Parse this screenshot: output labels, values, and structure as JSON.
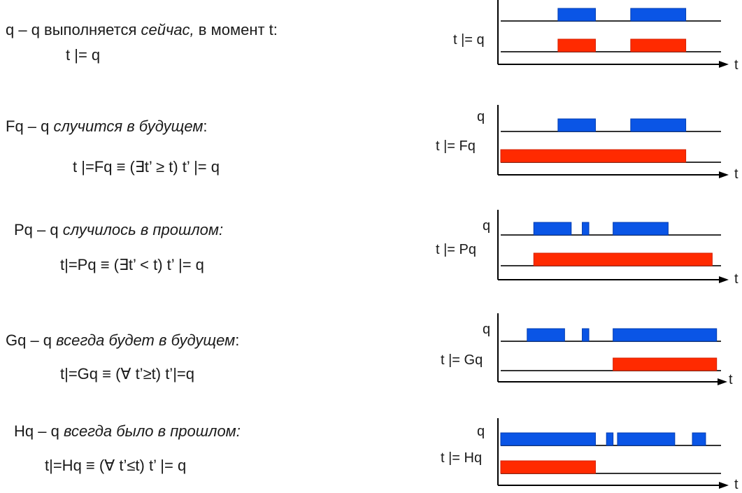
{
  "colors": {
    "q_signal": "#0a55e6",
    "result_signal": "#ff2a00",
    "axis": "#000000",
    "baseline": "#333333"
  },
  "rows": [
    {
      "id": "now",
      "name_lead": "q – q выполняется ",
      "name_italic": "сейчас,",
      "name_tail": " в момент t:",
      "formula": "t |= q",
      "top_label": "",
      "bottom_label": "t |= q",
      "axis_label": "t",
      "q_pulses": [
        [
          0.26,
          0.43
        ],
        [
          0.59,
          0.84
        ]
      ],
      "result_pulses": [
        [
          0.26,
          0.43
        ],
        [
          0.59,
          0.84
        ]
      ]
    },
    {
      "id": "future",
      "name_lead": "Fq – q ",
      "name_italic": "случится в будущем",
      "name_tail": ":",
      "formula": "t |=Fq ≡ (∃t’ ≥ t)  t’ |= q",
      "top_label": "q",
      "bottom_label": "t |= Fq",
      "axis_label": "t",
      "q_pulses": [
        [
          0.26,
          0.43
        ],
        [
          0.59,
          0.84
        ]
      ],
      "result_pulses": [
        [
          0.0,
          0.84
        ]
      ]
    },
    {
      "id": "past",
      "name_lead": "Pq – q ",
      "name_italic": "случилось в прошлом:",
      "name_tail": "",
      "formula": "t|=Pq ≡ (∃t’ < t)  t’ |= q",
      "top_label": "q",
      "bottom_label": "t |= Pq",
      "axis_label": "t",
      "q_pulses": [
        [
          0.15,
          0.32
        ],
        [
          0.37,
          0.4
        ],
        [
          0.51,
          0.76
        ]
      ],
      "result_pulses": [
        [
          0.15,
          0.96
        ]
      ]
    },
    {
      "id": "always_future",
      "name_lead": "Gq – q ",
      "name_italic": "всегда будет в будущем",
      "name_tail": ":",
      "formula": "t|=Gq ≡ (∀ t’≥t) t’|=q",
      "top_label": "q",
      "bottom_label": "t |= Gq",
      "axis_label": "t",
      "q_pulses": [
        [
          0.12,
          0.29
        ],
        [
          0.37,
          0.4
        ],
        [
          0.51,
          0.98
        ]
      ],
      "result_pulses": [
        [
          0.51,
          0.98
        ]
      ]
    },
    {
      "id": "always_past",
      "name_lead": "Hq – q ",
      "name_italic": "всегда было в прошлом:",
      "name_tail": "",
      "formula": "t|=Hq ≡ (∀ t’≤t)  t’ |= q",
      "top_label": "q",
      "bottom_label": "t |= Hq",
      "axis_label": "t",
      "q_pulses": [
        [
          0.0,
          0.43
        ],
        [
          0.48,
          0.51
        ],
        [
          0.53,
          0.79
        ],
        [
          0.87,
          0.93
        ]
      ],
      "result_pulses": [
        [
          0.0,
          0.43
        ]
      ]
    }
  ]
}
